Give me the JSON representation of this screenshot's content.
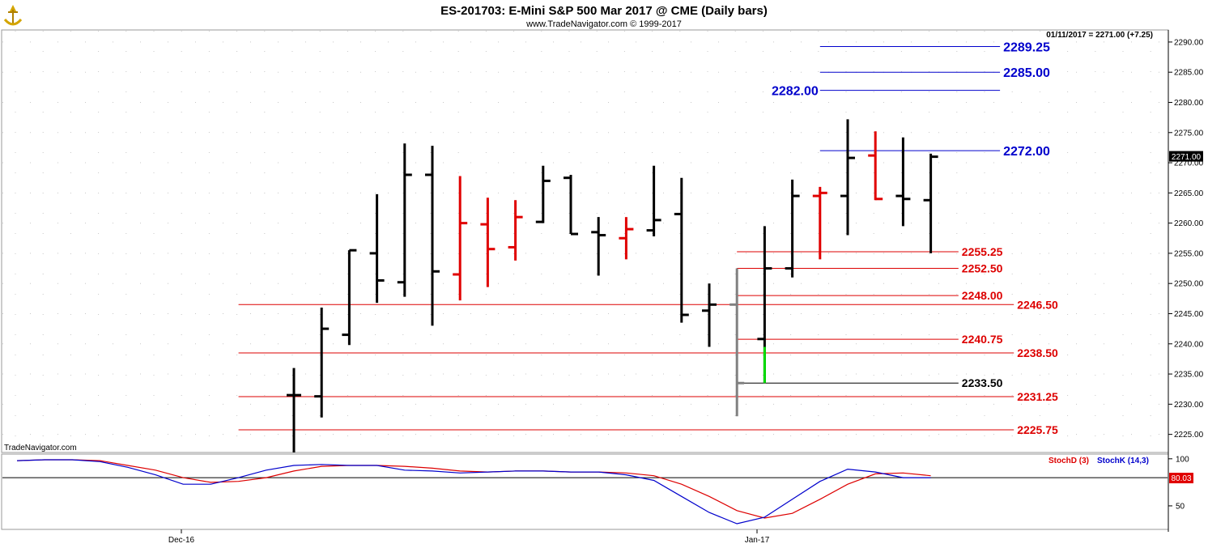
{
  "header": {
    "title": "ES-201703:  E-Mini S&P 500 Mar 2017 @ CME  (Daily bars)",
    "subtitle": "www.TradeNavigator.com © 1999-2017",
    "last_quote": "01/11/2017 = 2271.00 (+7.25)",
    "watermark": "TradeNavigator.com"
  },
  "chart_data": {
    "type": "ohlc",
    "price_axis": {
      "ylim": [
        2222,
        2292
      ],
      "ticks": [
        2225,
        2230,
        2235,
        2240,
        2245,
        2250,
        2255,
        2260,
        2265,
        2270,
        2275,
        2280,
        2285,
        2290
      ],
      "tick_labels": [
        "2225.00",
        "2230.00",
        "2235.00",
        "2240.00",
        "2245.00",
        "2250.00",
        "2255.00",
        "2260.00",
        "2265.00",
        "2270.00",
        "2275.00",
        "2280.00",
        "2285.00",
        "2290.00"
      ],
      "last_price_label": "2271.00"
    },
    "x_labels": [
      "Dec-16",
      "Jan-17"
    ],
    "colors": {
      "up": "#000000",
      "down": "#e00000",
      "special": "#808080",
      "highlight": "#00dd00",
      "blue_level": "#0000cc",
      "red_level": "#dd0000",
      "stochD": "#dd0000",
      "stochK": "#0000cc"
    },
    "bars": [
      {
        "open": 2231.5,
        "high": 2236.0,
        "low": 2222.0,
        "close": 2231.5,
        "color": "up"
      },
      {
        "open": 2231.3,
        "high": 2246.0,
        "low": 2227.8,
        "close": 2242.5,
        "color": "up"
      },
      {
        "open": 2241.5,
        "high": 2255.5,
        "low": 2239.8,
        "close": 2255.5,
        "color": "up"
      },
      {
        "open": 2255.0,
        "high": 2264.8,
        "low": 2246.8,
        "close": 2250.5,
        "color": "up"
      },
      {
        "open": 2250.2,
        "high": 2273.2,
        "low": 2247.8,
        "close": 2268.0,
        "color": "up"
      },
      {
        "open": 2268.0,
        "high": 2272.8,
        "low": 2243.0,
        "close": 2252.0,
        "color": "up"
      },
      {
        "open": 2251.5,
        "high": 2267.8,
        "low": 2247.2,
        "close": 2260.0,
        "color": "down"
      },
      {
        "open": 2259.8,
        "high": 2264.2,
        "low": 2249.4,
        "close": 2255.7,
        "color": "down"
      },
      {
        "open": 2256.0,
        "high": 2263.8,
        "low": 2253.8,
        "close": 2261.0,
        "color": "down"
      },
      {
        "open": 2260.2,
        "high": 2269.5,
        "low": 2260.0,
        "close": 2267.0,
        "color": "up"
      },
      {
        "open": 2267.5,
        "high": 2268.0,
        "low": 2258.2,
        "close": 2258.2,
        "color": "up"
      },
      {
        "open": 2258.5,
        "high": 2261.0,
        "low": 2251.3,
        "close": 2258.0,
        "color": "up"
      },
      {
        "open": 2257.5,
        "high": 2261.0,
        "low": 2254.0,
        "close": 2259.0,
        "color": "down"
      },
      {
        "open": 2258.8,
        "high": 2269.5,
        "low": 2257.8,
        "close": 2260.5,
        "color": "up"
      },
      {
        "open": 2261.5,
        "high": 2267.5,
        "low": 2243.5,
        "close": 2244.8,
        "color": "up"
      },
      {
        "open": 2245.5,
        "high": 2250.0,
        "low": 2239.5,
        "close": 2246.5,
        "color": "up"
      },
      {
        "open": 2246.5,
        "high": 2252.5,
        "low": 2228.0,
        "close": 2233.5,
        "color": "special"
      },
      {
        "open": 2240.8,
        "high": 2259.5,
        "low": 2233.5,
        "close": 2252.5,
        "color": "up",
        "low_segment": [
          2233.5,
          2239.5
        ]
      },
      {
        "open": 2252.5,
        "high": 2267.2,
        "low": 2251.0,
        "close": 2264.5,
        "color": "up"
      },
      {
        "open": 2264.5,
        "high": 2266.0,
        "low": 2254.0,
        "close": 2265.0,
        "color": "down"
      },
      {
        "open": 2264.5,
        "high": 2277.2,
        "low": 2258.0,
        "close": 2270.8,
        "color": "up"
      },
      {
        "open": 2271.2,
        "high": 2275.2,
        "low": 2263.8,
        "close": 2264.0,
        "color": "down"
      },
      {
        "open": 2264.5,
        "high": 2274.2,
        "low": 2259.5,
        "close": 2264.0,
        "color": "up"
      },
      {
        "open": 2263.8,
        "high": 2271.5,
        "low": 2255.0,
        "close": 2271.0,
        "color": "up"
      }
    ],
    "levels": [
      {
        "value": 2289.25,
        "label": "2289.25",
        "color": "blue_level",
        "from_bar": 19.0,
        "to_bar": 25.5,
        "label_side": "right"
      },
      {
        "value": 2285.0,
        "label": "2285.00",
        "color": "blue_level",
        "from_bar": 19.0,
        "to_bar": 25.5,
        "label_side": "right"
      },
      {
        "value": 2282.0,
        "label": "2282.00",
        "color": "blue_level",
        "from_bar": 19.0,
        "to_bar": 25.5,
        "label_side": "left"
      },
      {
        "value": 2272.0,
        "label": "2272.00",
        "color": "blue_level",
        "from_bar": 19.0,
        "to_bar": 25.5,
        "label_side": "right"
      },
      {
        "value": 2255.25,
        "label": "2255.25",
        "color": "red_level",
        "from_bar": 16.0,
        "to_bar": 24.0,
        "label_side": "right"
      },
      {
        "value": 2252.5,
        "label": "2252.50",
        "color": "red_level",
        "from_bar": 16.0,
        "to_bar": 24.0,
        "label_side": "right"
      },
      {
        "value": 2248.0,
        "label": "2248.00",
        "color": "red_level",
        "from_bar": 16.0,
        "to_bar": 24.0,
        "label_side": "right"
      },
      {
        "value": 2246.5,
        "label": "2246.50",
        "color": "red_level",
        "from_bar": -2.0,
        "to_bar": 26.0,
        "label_side": "right"
      },
      {
        "value": 2240.75,
        "label": "2240.75",
        "color": "red_level",
        "from_bar": 16.0,
        "to_bar": 24.0,
        "label_side": "right"
      },
      {
        "value": 2238.5,
        "label": "2238.50",
        "color": "red_level",
        "from_bar": -2.0,
        "to_bar": 26.0,
        "label_side": "right"
      },
      {
        "value": 2233.5,
        "label": "2233.50",
        "color": "black",
        "from_bar": 16.0,
        "to_bar": 24.0,
        "label_side": "right"
      },
      {
        "value": 2231.25,
        "label": "2231.25",
        "color": "red_level",
        "from_bar": -2.0,
        "to_bar": 26.0,
        "label_side": "right"
      },
      {
        "value": 2225.75,
        "label": "2225.75",
        "color": "red_level",
        "from_bar": -2.0,
        "to_bar": 26.0,
        "label_side": "right"
      }
    ],
    "stochastic": {
      "legend": [
        "StochD (3)",
        "StochK (14,3)"
      ],
      "ylim": [
        25,
        105
      ],
      "ticks": [
        50,
        100
      ],
      "tick_labels": [
        "50",
        "100"
      ],
      "reference_level": 80,
      "value_label": "80.03",
      "x": [
        -10,
        -9,
        -8,
        -7,
        -6,
        -5,
        -4,
        -3,
        -2,
        -1,
        0,
        1,
        2,
        3,
        4,
        5,
        6,
        7,
        8,
        9,
        10,
        11,
        12,
        13,
        14,
        15,
        16,
        17,
        18,
        19,
        20,
        21,
        22,
        23
      ],
      "stochK": [
        98,
        99,
        99,
        97,
        91,
        83,
        73,
        73,
        80,
        88,
        93,
        94,
        93,
        93,
        88,
        87,
        85,
        86,
        87,
        87,
        86,
        86,
        83,
        77,
        60,
        43,
        31,
        38,
        57,
        76,
        89,
        86,
        80,
        80
      ],
      "stochD": [
        98,
        99,
        99,
        98,
        93,
        88,
        80,
        75,
        76,
        80,
        87,
        92,
        93,
        93,
        92,
        90,
        87,
        86,
        87,
        87,
        86,
        86,
        85,
        82,
        73,
        60,
        45,
        37,
        42,
        57,
        73,
        84,
        85,
        82
      ]
    }
  }
}
